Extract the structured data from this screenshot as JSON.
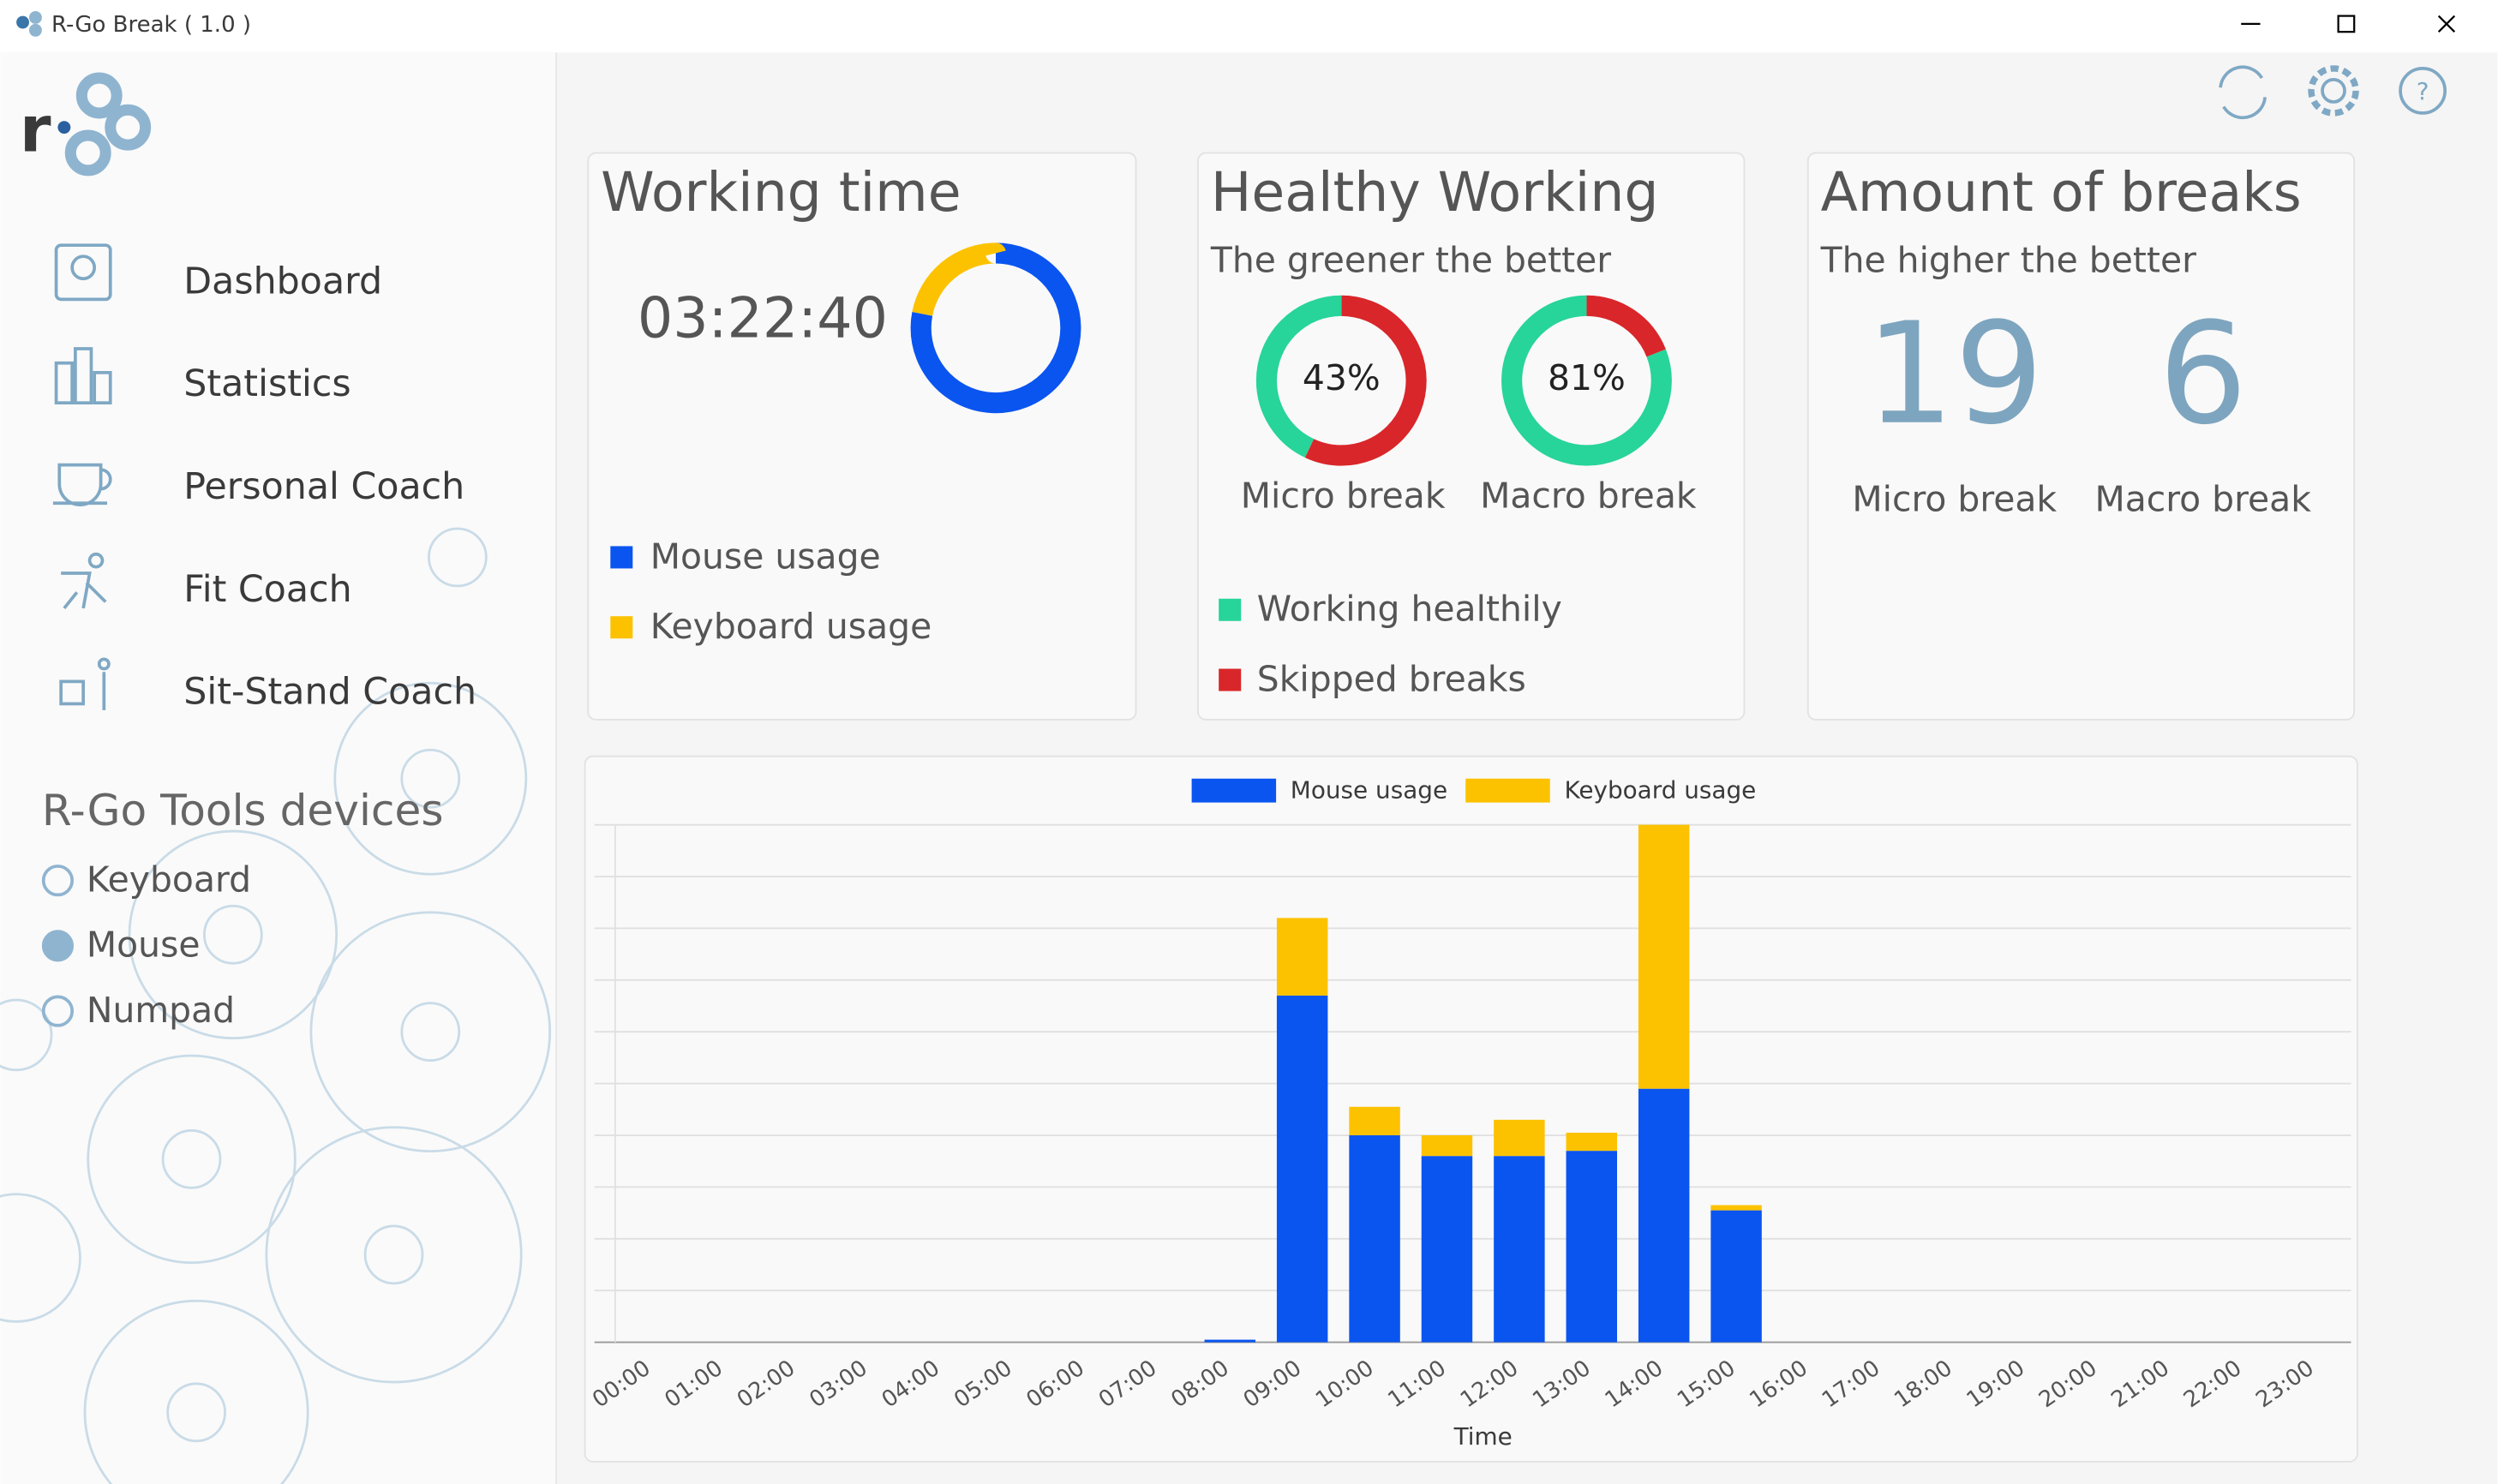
{
  "window": {
    "title": "R-Go Break ( 1.0 )"
  },
  "sidebar": {
    "nav": [
      "Dashboard",
      "Statistics",
      "Personal Coach",
      "Fit Coach",
      "Sit-Stand Coach"
    ],
    "devices_title": "R-Go Tools devices",
    "devices": [
      {
        "label": "Keyboard",
        "selected": false
      },
      {
        "label": "Mouse",
        "selected": true
      },
      {
        "label": "Numpad",
        "selected": false
      }
    ]
  },
  "working_time": {
    "title": "Working time",
    "time": "03:22:40",
    "series": [
      {
        "name": "Mouse usage",
        "color": "#0a55f0",
        "value": 78
      },
      {
        "name": "Keyboard usage",
        "color": "#fcc200",
        "value": 22
      }
    ]
  },
  "healthy_working": {
    "title": "Healthy Working",
    "subtitle": "The greener the better",
    "legend": [
      {
        "name": "Working healthily",
        "color": "#27d49a"
      },
      {
        "name": "Skipped breaks",
        "color": "#d9262a"
      }
    ],
    "donuts": [
      {
        "label": "Micro break",
        "value_label": "43%",
        "values": [
          43,
          57
        ]
      },
      {
        "label": "Macro break",
        "value_label": "81%",
        "values": [
          81,
          19
        ]
      }
    ]
  },
  "amount_of_breaks": {
    "title": "Amount of breaks",
    "subtitle": "The higher the better",
    "counts": [
      {
        "value": 19,
        "label": "Micro break"
      },
      {
        "value": 6,
        "label": "Macro break"
      }
    ]
  },
  "chart_data": {
    "type": "stacked_bar",
    "x_label": "Time",
    "categories": [
      "00:00",
      "01:00",
      "02:00",
      "03:00",
      "04:00",
      "05:00",
      "06:00",
      "07:00",
      "08:00",
      "09:00",
      "10:00",
      "11:00",
      "12:00",
      "13:00",
      "14:00",
      "15:00",
      "16:00",
      "17:00",
      "18:00",
      "19:00",
      "20:00",
      "21:00",
      "22:00",
      "23:00"
    ],
    "series": [
      {
        "name": "Mouse usage",
        "color": "#0a55f0",
        "values": [
          0,
          0,
          0,
          0,
          0,
          0,
          0,
          0,
          0.05,
          6.7,
          4.0,
          3.6,
          3.6,
          3.7,
          4.9,
          2.55,
          0,
          0,
          0,
          0,
          0,
          0,
          0,
          0
        ]
      },
      {
        "name": "Keyboard usage",
        "color": "#fcc200",
        "values": [
          0,
          0,
          0,
          0,
          0,
          0,
          0,
          0,
          0,
          1.5,
          0.55,
          0.4,
          0.7,
          0.35,
          5.1,
          0.1,
          0,
          0,
          0,
          0,
          0,
          0,
          0,
          0
        ]
      }
    ],
    "ylim": [
      0,
      10
    ],
    "yticks": [
      0,
      1,
      2,
      3,
      4,
      5,
      6,
      7,
      8,
      9,
      10
    ],
    "grid": true
  }
}
